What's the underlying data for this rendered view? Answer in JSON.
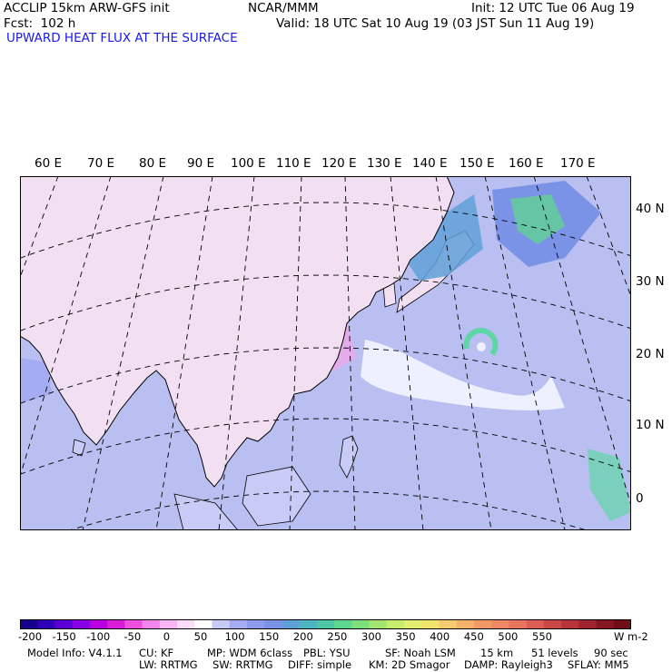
{
  "header": {
    "model": "ACCLIP 15km ARW-GFS init",
    "fcst": "Fcst:  102 h",
    "center": "NCAR/MMM",
    "init": "Init: 12 UTC Tue 06 Aug 19",
    "valid": "Valid: 18 UTC Sat 10 Aug 19 (03 JST Sun 11 Aug 19)",
    "field": "UPWARD HEAT FLUX AT THE SURFACE"
  },
  "map": {
    "lon_labels": [
      "60 E",
      "70 E",
      "80 E",
      "90 E",
      "100 E",
      "110 E",
      "120 E",
      "130 E",
      "140 E",
      "150 E",
      "160 E",
      "170 E"
    ],
    "lat_labels": [
      "40 N",
      "30 N",
      "20 N",
      "10 N",
      "0"
    ],
    "colors": {
      "ocean": "#b9bff0",
      "land_dry": "#f2dff2",
      "land_pink": "#f2a6ea",
      "storm": "#5fd6a6",
      "coast": "#000000"
    }
  },
  "colorbar": {
    "labels": [
      "-200",
      "-150",
      "-100",
      "-50",
      "0",
      "50",
      "100",
      "150",
      "200",
      "250",
      "300",
      "350",
      "400",
      "450",
      "500",
      "550"
    ],
    "units": "W m-2",
    "colors": [
      "#15008f",
      "#2f00b8",
      "#5a00d6",
      "#8a00e6",
      "#b800e0",
      "#d81cd8",
      "#ee50e0",
      "#f585ee",
      "#f8b4f4",
      "#fbdcf9",
      "#ffffff",
      "#c8cbf6",
      "#a6acf3",
      "#8f9cee",
      "#7a93e6",
      "#5fa0d8",
      "#4fb4c2",
      "#4fc6a6",
      "#5fd68e",
      "#7de07c",
      "#a3e772",
      "#c6ed6e",
      "#e2ef70",
      "#f2e46e",
      "#f6cc70",
      "#f4b26a",
      "#f29a66",
      "#ef8a64",
      "#e8765e",
      "#dc5e54",
      "#cc4846",
      "#b8343a",
      "#a0242e",
      "#861722",
      "#6e0f18"
    ]
  },
  "footer": {
    "line1": [
      "Model Info: V4.1.1",
      "CU: KF",
      "MP: WDM 6class",
      "PBL: YSU",
      "SF: Noah LSM",
      "15 km",
      "51 levels",
      "90 sec"
    ],
    "line2": [
      "LW: RRTMG",
      "SW: RRTMG",
      "DIFF: simple",
      "KM: 2D Smagor",
      "DAMP: Rayleigh3",
      "SFLAY: MM5"
    ]
  }
}
